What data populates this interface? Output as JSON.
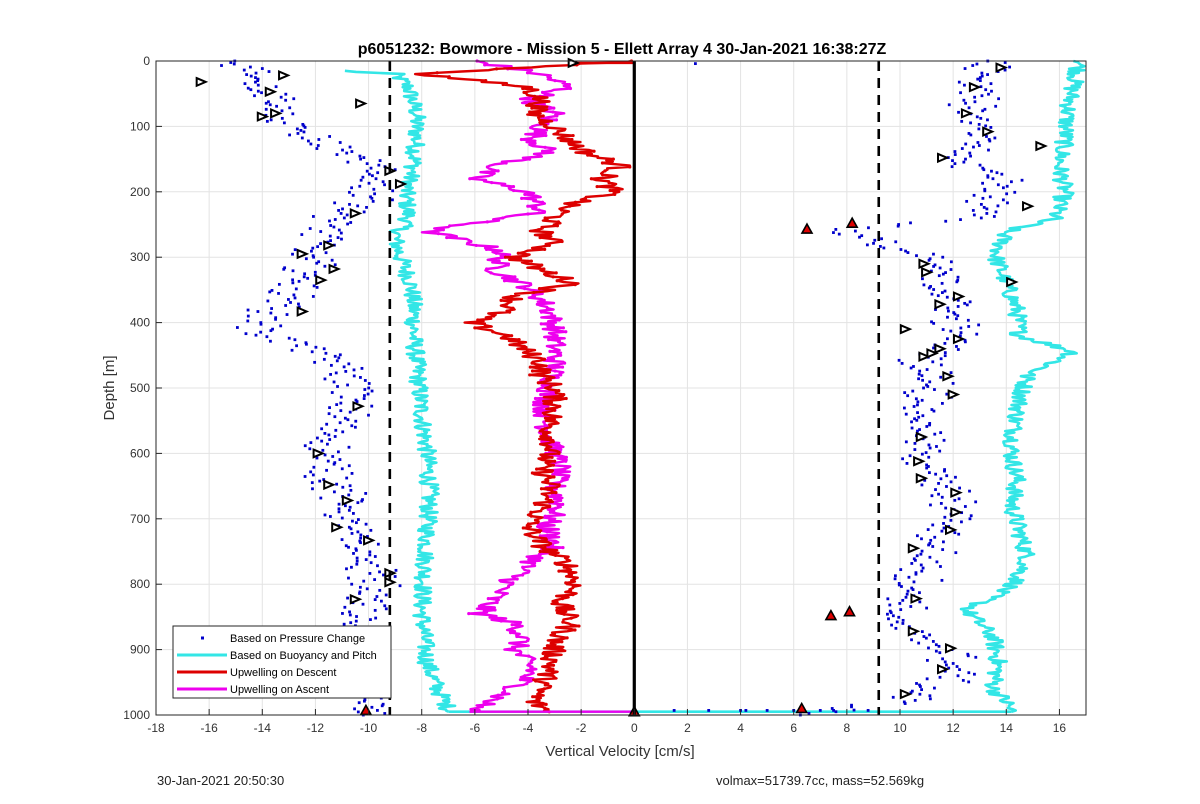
{
  "footer": {
    "timestamp": "30-Jan-2021 20:50:30",
    "info": "volmax=51739.7cc, mass=52.569kg"
  },
  "chart_data": {
    "type": "line",
    "title": "p6051232: Bowmore - Mission 5 - Ellett Array 4 30-Jan-2021 16:38:27Z",
    "xlabel": "Vertical Velocity [cm/s]",
    "ylabel": "Depth [m]",
    "xlim": [
      -18,
      17
    ],
    "ylim": [
      0,
      1000
    ],
    "y_reversed": true,
    "grid": true,
    "legend_position": "bottom-left",
    "x_ticks": [
      "-18",
      "-16",
      "-14",
      "-12",
      "-10",
      "-8",
      "-6",
      "-4",
      "-2",
      "0",
      "2",
      "4",
      "6",
      "8",
      "10",
      "12",
      "14",
      "16"
    ],
    "y_ticks": [
      "0",
      "100",
      "200",
      "300",
      "400",
      "500",
      "600",
      "700",
      "800",
      "900",
      "1000"
    ],
    "reference_lines": [
      {
        "style": "dashed",
        "x": -9.2
      },
      {
        "style": "dashed",
        "x": 9.2
      },
      {
        "style": "solid",
        "x": 0
      }
    ],
    "colors": {
      "pressure": "#0000cc",
      "buoyancy": "#33e6e6",
      "descent": "#dd0000",
      "ascent": "#ee00ee"
    },
    "series": [
      {
        "name": "Based on Pressure Change",
        "style": "points",
        "color": "#0000cc",
        "left_branch": {
          "depth": [
            0,
            30,
            60,
            90,
            120,
            150,
            180,
            210,
            240,
            270,
            300,
            330,
            360,
            390,
            410,
            440,
            470,
            500,
            530,
            560,
            600,
            640,
            680,
            720,
            760,
            800,
            840,
            880,
            920,
            960,
            1000
          ],
          "velocity": [
            -15,
            -14,
            -13.5,
            -13.5,
            -12,
            -10.5,
            -9.5,
            -10,
            -11.2,
            -11.8,
            -12.2,
            -12.5,
            -13,
            -13.8,
            -14.2,
            -12.2,
            -11,
            -10.6,
            -10.8,
            -11.2,
            -11.6,
            -11.3,
            -10.9,
            -10.8,
            -10.2,
            -9.8,
            -10.3,
            -11,
            -10.6,
            -10,
            -10
          ]
        },
        "right_branch": {
          "depth": [
            0,
            30,
            60,
            90,
            120,
            150,
            180,
            210,
            240,
            260,
            300,
            340,
            380,
            420,
            460,
            500,
            540,
            580,
            620,
            660,
            700,
            740,
            780,
            820,
            860,
            880,
            900,
            940,
            980,
            1000
          ],
          "velocity": [
            13.6,
            13.2,
            12.8,
            12.8,
            13,
            12,
            14,
            13.5,
            13.2,
            7.5,
            11,
            11.5,
            12.2,
            12,
            11,
            11.2,
            10.9,
            10.8,
            11,
            11.8,
            12,
            11.2,
            10.8,
            10.2,
            9.8,
            10.5,
            11.8,
            12,
            10,
            6.5
          ]
        }
      },
      {
        "name": "Based on Buoyancy and Pitch",
        "style": "line",
        "color": "#33e6e6",
        "left_branch": {
          "depth": [
            15,
            20,
            40,
            80,
            120,
            160,
            200,
            240,
            270,
            300,
            340,
            380,
            420,
            460,
            500,
            540,
            600,
            660,
            720,
            780,
            840,
            880,
            920,
            960,
            990,
            995
          ],
          "velocity": [
            -11,
            -9,
            -8.5,
            -8.2,
            -8.2,
            -8.3,
            -8.6,
            -8.5,
            -9,
            -8.8,
            -8.4,
            -8.3,
            -8.3,
            -8.2,
            -8.1,
            -8,
            -7.8,
            -7.7,
            -7.8,
            -7.9,
            -8,
            -7.9,
            -7.8,
            -7.4,
            -7,
            -7
          ]
        },
        "right_branch": {
          "depth": [
            0,
            40,
            80,
            120,
            160,
            200,
            240,
            260,
            300,
            340,
            380,
            420,
            445,
            480,
            520,
            560,
            600,
            640,
            680,
            720,
            760,
            800,
            840,
            880,
            920,
            960,
            980,
            995
          ],
          "velocity": [
            16.8,
            16.5,
            16.3,
            16.2,
            16,
            16.2,
            15.8,
            14,
            13.6,
            14,
            14.4,
            14.5,
            16.6,
            14.8,
            14.5,
            14.3,
            14.2,
            14.4,
            14.2,
            14.5,
            14.8,
            14.3,
            12.5,
            13.5,
            13.7,
            13.5,
            14,
            14.2
          ]
        },
        "bottom_link": {
          "depth": 995,
          "from": -7,
          "to": 14.2
        }
      },
      {
        "name": "Upwelling on Descent",
        "style": "line-with-points",
        "color": "#dd0000",
        "depth": [
          0,
          20,
          40,
          60,
          80,
          100,
          120,
          140,
          160,
          180,
          200,
          220,
          240,
          260,
          280,
          300,
          320,
          340,
          360,
          380,
          400,
          420,
          440,
          460,
          480,
          500,
          530,
          560,
          590,
          620,
          650,
          680,
          710,
          740,
          770,
          800,
          830,
          860,
          890,
          920,
          950,
          980,
          995
        ],
        "velocity": [
          0,
          -8,
          -4,
          -3.5,
          -3.8,
          -3,
          -2.5,
          -1.8,
          -0.5,
          -1.2,
          -0.8,
          -2.5,
          -3,
          -3.5,
          -3,
          -4.5,
          -3.5,
          -2.2,
          -4.5,
          -4.8,
          -6.2,
          -4.8,
          -4.2,
          -3.5,
          -3.5,
          -3,
          -3,
          -3.2,
          -3.1,
          -3.5,
          -3.2,
          -3.4,
          -4,
          -3.5,
          -2.5,
          -2.2,
          -2.8,
          -2.4,
          -3,
          -3.1,
          -3.4,
          -3.8,
          -3.2
        ]
      },
      {
        "name": "Upwelling on Ascent",
        "style": "line-with-points",
        "color": "#ee00ee",
        "depth": [
          0,
          20,
          40,
          60,
          80,
          100,
          120,
          140,
          160,
          180,
          200,
          230,
          260,
          290,
          320,
          350,
          380,
          410,
          440,
          470,
          500,
          530,
          560,
          590,
          620,
          650,
          680,
          710,
          740,
          770,
          800,
          830,
          845,
          860,
          880,
          900,
          930,
          960,
          995
        ],
        "velocity": [
          -6,
          -3.5,
          -2.5,
          -4,
          -3,
          -3.5,
          -3.8,
          -3.2,
          -5.2,
          -6,
          -4,
          -3.5,
          -7.8,
          -5,
          -5.2,
          -3.8,
          -3.2,
          -3,
          -3,
          -3,
          -3.2,
          -3.4,
          -3.3,
          -3.1,
          -2.8,
          -3,
          -2.8,
          -3.3,
          -3,
          -4,
          -4.8,
          -5.5,
          -5.8,
          -4.5,
          -4.2,
          -4.5,
          -3.8,
          -4.5,
          -6.2
        ]
      }
    ],
    "marker_groups": [
      {
        "kind": "triangle-outline",
        "points": [
          {
            "x": -16.3,
            "y": 32
          },
          {
            "x": -13.2,
            "y": 22
          },
          {
            "x": -13.7,
            "y": 47
          },
          {
            "x": -10.3,
            "y": 65
          },
          {
            "x": -13.5,
            "y": 80
          },
          {
            "x": -14,
            "y": 85
          },
          {
            "x": -9.2,
            "y": 168
          },
          {
            "x": -8.8,
            "y": 188
          },
          {
            "x": -10.5,
            "y": 233
          },
          {
            "x": -11.5,
            "y": 282
          },
          {
            "x": -12.5,
            "y": 295
          },
          {
            "x": -11.3,
            "y": 318
          },
          {
            "x": -11.8,
            "y": 335
          },
          {
            "x": -12.5,
            "y": 383
          },
          {
            "x": -10.4,
            "y": 528
          },
          {
            "x": -11.9,
            "y": 600
          },
          {
            "x": -11.5,
            "y": 648
          },
          {
            "x": -10.8,
            "y": 672
          },
          {
            "x": -11.2,
            "y": 713
          },
          {
            "x": -10,
            "y": 733
          },
          {
            "x": -9.2,
            "y": 783
          },
          {
            "x": -9.2,
            "y": 797
          },
          {
            "x": -10.5,
            "y": 823
          },
          {
            "x": -10.9,
            "y": 872
          },
          {
            "x": -11.6,
            "y": 916
          },
          {
            "x": -9.6,
            "y": 940
          },
          {
            "x": -9.5,
            "y": 966
          },
          {
            "x": -2.3,
            "y": 3
          },
          {
            "x": 13.8,
            "y": 10
          },
          {
            "x": 12.8,
            "y": 40
          },
          {
            "x": 12.5,
            "y": 80
          },
          {
            "x": 13.3,
            "y": 108
          },
          {
            "x": 15.3,
            "y": 130
          },
          {
            "x": 11.6,
            "y": 148
          },
          {
            "x": 14.8,
            "y": 222
          },
          {
            "x": 10.9,
            "y": 310
          },
          {
            "x": 11,
            "y": 323
          },
          {
            "x": 14.2,
            "y": 338
          },
          {
            "x": 12.2,
            "y": 360
          },
          {
            "x": 11.5,
            "y": 372
          },
          {
            "x": 10.2,
            "y": 410
          },
          {
            "x": 12.2,
            "y": 425
          },
          {
            "x": 11.5,
            "y": 440
          },
          {
            "x": 11.2,
            "y": 447
          },
          {
            "x": 10.9,
            "y": 452
          },
          {
            "x": 11.8,
            "y": 482
          },
          {
            "x": 12,
            "y": 510
          },
          {
            "x": 10.8,
            "y": 575
          },
          {
            "x": 10.7,
            "y": 612
          },
          {
            "x": 10.8,
            "y": 638
          },
          {
            "x": 12.1,
            "y": 660
          },
          {
            "x": 12.1,
            "y": 690
          },
          {
            "x": 11.9,
            "y": 717
          },
          {
            "x": 10.5,
            "y": 745
          },
          {
            "x": 10.6,
            "y": 822
          },
          {
            "x": 10.5,
            "y": 872
          },
          {
            "x": 11.9,
            "y": 898
          },
          {
            "x": 11.6,
            "y": 930
          },
          {
            "x": 10.2,
            "y": 968
          }
        ]
      },
      {
        "kind": "triangle-filled",
        "points": [
          {
            "x": 6.5,
            "y": 257
          },
          {
            "x": 8.2,
            "y": 248
          },
          {
            "x": 7.4,
            "y": 848
          },
          {
            "x": 8.1,
            "y": 842
          },
          {
            "x": 6.3,
            "y": 990
          },
          {
            "x": -10.1,
            "y": 993
          },
          {
            "x": 0,
            "y": 995
          }
        ]
      }
    ]
  }
}
